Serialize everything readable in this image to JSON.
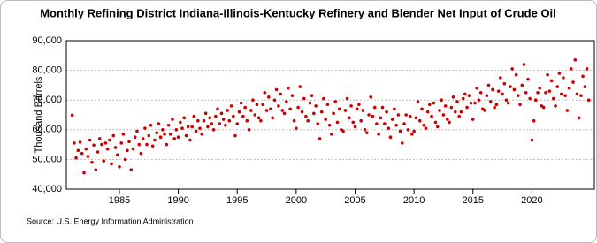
{
  "chart_data": {
    "type": "scatter",
    "title": "Monthly Refining District Indiana-Illinois-Kentucky Refinery and Blender Net Input of Crude Oil",
    "y_label": "Thousand Barrels",
    "source": "Source: U.S. Energy Information Administration",
    "color": "#cc0000",
    "grid": true,
    "xlim": [
      1980.5,
      2025.3
    ],
    "xticks": [
      1985,
      1990,
      1995,
      2000,
      2005,
      2010,
      2015,
      2020
    ],
    "ylim": [
      40000,
      90000
    ],
    "yticks": [
      {
        "value": 40000,
        "label": "40,000"
      },
      {
        "value": 50000,
        "label": "50,000"
      },
      {
        "value": 60000,
        "label": "60,000"
      },
      {
        "value": 70000,
        "label": "70,000"
      },
      {
        "value": 80000,
        "label": "80,000"
      },
      {
        "value": 90000,
        "label": "90,000"
      }
    ],
    "x": [
      1981,
      1981.17,
      1981.33,
      1981.5,
      1981.67,
      1981.83,
      1982,
      1982.17,
      1982.33,
      1982.5,
      1982.67,
      1982.83,
      1983,
      1983.17,
      1983.33,
      1983.5,
      1983.67,
      1983.83,
      1984,
      1984.17,
      1984.33,
      1984.5,
      1984.67,
      1984.83,
      1985,
      1985.17,
      1985.33,
      1985.5,
      1985.67,
      1985.83,
      1986,
      1986.17,
      1986.33,
      1986.5,
      1986.67,
      1986.83,
      1987,
      1987.17,
      1987.33,
      1987.5,
      1987.67,
      1987.83,
      1988,
      1988.17,
      1988.33,
      1988.5,
      1988.67,
      1988.83,
      1989,
      1989.17,
      1989.33,
      1989.5,
      1989.67,
      1989.83,
      1990,
      1990.17,
      1990.33,
      1990.5,
      1990.67,
      1990.83,
      1991,
      1991.17,
      1991.33,
      1991.5,
      1991.67,
      1991.83,
      1992,
      1992.17,
      1992.33,
      1992.5,
      1992.67,
      1992.83,
      1993,
      1993.17,
      1993.33,
      1993.5,
      1993.67,
      1993.83,
      1994,
      1994.17,
      1994.33,
      1994.5,
      1994.67,
      1994.83,
      1995,
      1995.17,
      1995.33,
      1995.5,
      1995.67,
      1995.83,
      1996,
      1996.17,
      1996.33,
      1996.5,
      1996.67,
      1996.83,
      1997,
      1997.17,
      1997.33,
      1997.5,
      1997.67,
      1997.83,
      1998,
      1998.17,
      1998.33,
      1998.5,
      1998.67,
      1998.83,
      1999,
      1999.17,
      1999.33,
      1999.5,
      1999.67,
      1999.83,
      2000,
      2000.17,
      2000.33,
      2000.5,
      2000.67,
      2000.83,
      2001,
      2001.17,
      2001.33,
      2001.5,
      2001.67,
      2001.83,
      2002,
      2002.17,
      2002.33,
      2002.5,
      2002.67,
      2002.83,
      2003,
      2003.17,
      2003.33,
      2003.5,
      2003.67,
      2003.83,
      2004,
      2004.17,
      2004.33,
      2004.5,
      2004.67,
      2004.83,
      2005,
      2005.17,
      2005.33,
      2005.5,
      2005.67,
      2005.83,
      2006,
      2006.17,
      2006.33,
      2006.5,
      2006.67,
      2006.83,
      2007,
      2007.17,
      2007.33,
      2007.5,
      2007.67,
      2007.83,
      2008,
      2008.17,
      2008.33,
      2008.5,
      2008.67,
      2008.83,
      2009,
      2009.17,
      2009.33,
      2009.5,
      2009.67,
      2009.83,
      2010,
      2010.17,
      2010.33,
      2010.5,
      2010.67,
      2010.83,
      2011,
      2011.17,
      2011.33,
      2011.5,
      2011.67,
      2011.83,
      2012,
      2012.17,
      2012.33,
      2012.5,
      2012.67,
      2012.83,
      2013,
      2013.17,
      2013.33,
      2013.5,
      2013.67,
      2013.83,
      2014,
      2014.17,
      2014.33,
      2014.5,
      2014.67,
      2014.83,
      2015,
      2015.17,
      2015.33,
      2015.5,
      2015.67,
      2015.83,
      2016,
      2016.17,
      2016.33,
      2016.5,
      2016.67,
      2016.83,
      2017,
      2017.17,
      2017.33,
      2017.5,
      2017.67,
      2017.83,
      2018,
      2018.17,
      2018.33,
      2018.5,
      2018.67,
      2018.83,
      2019,
      2019.17,
      2019.33,
      2019.5,
      2019.67,
      2019.83,
      2020,
      2020.17,
      2020.33,
      2020.5,
      2020.67,
      2020.83,
      2021,
      2021.17,
      2021.33,
      2021.5,
      2021.67,
      2021.83,
      2022,
      2022.17,
      2022.33,
      2022.5,
      2022.67,
      2022.83,
      2023,
      2023.17,
      2023.33,
      2023.5,
      2023.67,
      2023.83,
      2024,
      2024.17,
      2024.33,
      2024.5,
      2024.67,
      2024.83
    ],
    "values": [
      64900,
      55500,
      50500,
      53000,
      55800,
      52000,
      45500,
      53500,
      51000,
      56500,
      49000,
      54800,
      46500,
      52500,
      57000,
      55000,
      49500,
      55500,
      53500,
      56500,
      48500,
      58000,
      54000,
      51500,
      47500,
      55500,
      58500,
      50000,
      53000,
      56000,
      46500,
      53500,
      57500,
      59500,
      55000,
      52000,
      57000,
      60500,
      55000,
      58000,
      61500,
      54500,
      56500,
      59000,
      62000,
      57500,
      60000,
      58500,
      55000,
      61500,
      58500,
      63500,
      57000,
      60000,
      57500,
      62500,
      60500,
      64000,
      58000,
      61000,
      56500,
      61000,
      64500,
      59500,
      63000,
      60500,
      58500,
      63000,
      65500,
      61000,
      64000,
      62000,
      60000,
      64500,
      67000,
      62000,
      65500,
      63500,
      61500,
      66500,
      63000,
      68000,
      64500,
      58000,
      62000,
      66000,
      69000,
      64500,
      67500,
      63000,
      60000,
      66500,
      70000,
      65000,
      68500,
      64000,
      63000,
      68500,
      72500,
      66500,
      71000,
      67000,
      64000,
      70000,
      73500,
      68000,
      72000,
      66500,
      65500,
      69500,
      74000,
      67000,
      71500,
      63000,
      60500,
      67500,
      74500,
      66000,
      70500,
      64500,
      63000,
      69000,
      71500,
      65500,
      68000,
      62000,
      57000,
      66000,
      70500,
      63500,
      68500,
      61500,
      58500,
      65500,
      69500,
      62500,
      67000,
      60000,
      59500,
      66500,
      70500,
      64000,
      68000,
      62500,
      61000,
      67000,
      68500,
      63000,
      66500,
      60000,
      59000,
      65000,
      71000,
      64500,
      67500,
      62000,
      58500,
      64000,
      67500,
      62000,
      66000,
      60500,
      57500,
      63500,
      67000,
      61500,
      65000,
      59500,
      55500,
      62000,
      65000,
      60000,
      64500,
      58500,
      59500,
      64000,
      69500,
      63000,
      67000,
      61500,
      60500,
      66000,
      68500,
      64500,
      69000,
      62500,
      61000,
      66500,
      70000,
      65000,
      68000,
      63500,
      62500,
      67500,
      71000,
      66000,
      69500,
      64500,
      66000,
      70500,
      72000,
      67500,
      71500,
      69000,
      63500,
      69000,
      74000,
      70000,
      72500,
      67000,
      66500,
      71500,
      75000,
      69500,
      73500,
      67500,
      68500,
      73000,
      77500,
      72000,
      75500,
      70000,
      69000,
      74500,
      80500,
      73500,
      78500,
      71500,
      68500,
      75000,
      82000,
      72500,
      77000,
      70500,
      56500,
      63000,
      70000,
      72500,
      74000,
      68000,
      67500,
      72500,
      78500,
      73000,
      76500,
      70500,
      68000,
      74500,
      79000,
      72000,
      77500,
      71500,
      66500,
      74000,
      80500,
      76000,
      83500,
      72000,
      64000,
      71500,
      78000,
      74500,
      80500,
      70000
    ]
  }
}
